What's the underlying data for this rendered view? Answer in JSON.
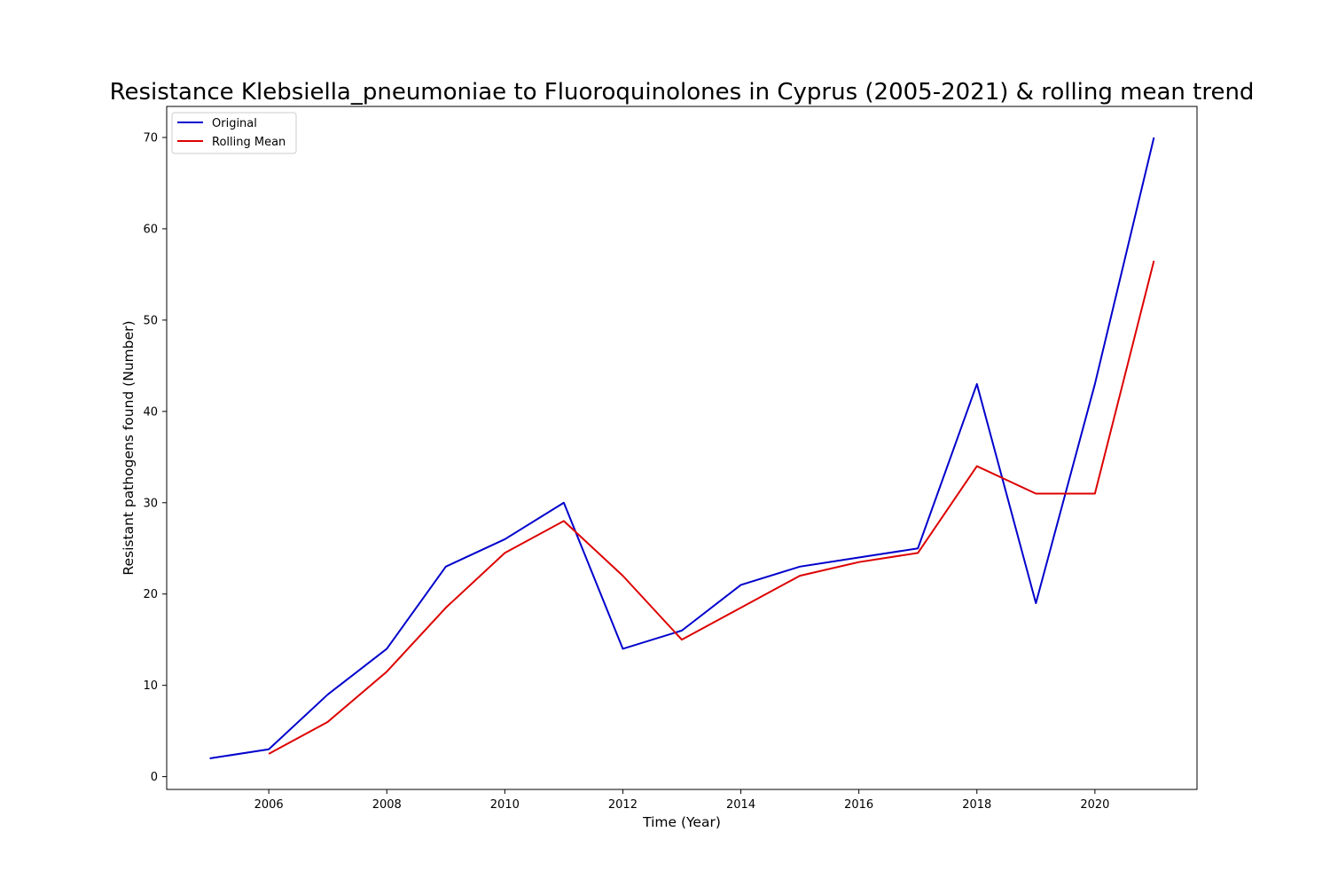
{
  "chart_data": {
    "type": "line",
    "title": "Resistance Klebsiella_pneumoniae to Fluoroquinolones in Cyprus (2005-2021) & rolling mean trend",
    "xlabel": "Time (Year)",
    "ylabel": "Resistant pathogens found (Number)",
    "xlim": [
      2004.27,
      2021.73
    ],
    "ylim": [
      -1.4,
      73.4
    ],
    "xticks": [
      2006,
      2008,
      2010,
      2012,
      2014,
      2016,
      2018,
      2020
    ],
    "yticks": [
      0,
      10,
      20,
      30,
      40,
      50,
      60,
      70
    ],
    "grid": false,
    "legend_position": "top-left",
    "series": [
      {
        "name": "Original",
        "color": "#0000cc",
        "x": [
          2005,
          2006,
          2007,
          2008,
          2009,
          2010,
          2011,
          2012,
          2013,
          2014,
          2015,
          2016,
          2017,
          2018,
          2019,
          2020,
          2021
        ],
        "values": [
          2,
          3,
          9,
          14,
          23,
          26,
          30,
          14,
          16,
          21,
          23,
          24,
          25,
          43,
          19,
          43,
          70
        ]
      },
      {
        "name": "Rolling Mean",
        "color": "#dd0000",
        "x": [
          2006,
          2007,
          2008,
          2009,
          2010,
          2011,
          2012,
          2013,
          2014,
          2015,
          2016,
          2017,
          2018,
          2019,
          2020,
          2021
        ],
        "values": [
          2.5,
          6,
          11.5,
          18.5,
          24.5,
          28,
          22,
          15,
          18.5,
          22,
          23.5,
          24.5,
          34,
          31,
          31,
          56.5
        ]
      }
    ]
  }
}
